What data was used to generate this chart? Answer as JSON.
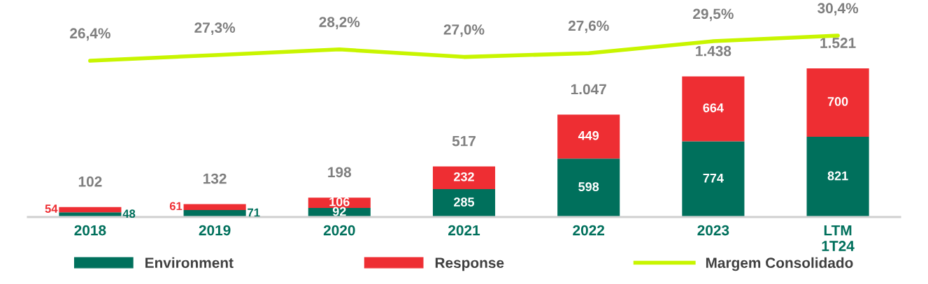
{
  "chart_data": [
    {
      "type": "bar",
      "stacked": true,
      "categories": [
        "2018",
        "2019",
        "2020",
        "2021",
        "2022",
        "2023",
        "LTM\n1T24"
      ],
      "series": [
        {
          "name": "Environment",
          "color": "#00705c",
          "values": [
            48,
            71,
            92,
            285,
            598,
            774,
            821
          ]
        },
        {
          "name": "Response",
          "color": "#ee2e33",
          "values": [
            54,
            61,
            106,
            232,
            449,
            664,
            700
          ]
        }
      ],
      "totals": [
        "102",
        "132",
        "198",
        "517",
        "1.047",
        "1.438",
        "1.521"
      ],
      "data_labels": true,
      "tick_labels": "x",
      "grid": false,
      "legend": "bottom"
    },
    {
      "type": "line",
      "categories": [
        null,
        null,
        null,
        null,
        null,
        null,
        null
      ],
      "series": [
        {
          "name": "Margem Consolidado",
          "color": "#c8f500",
          "values": [
            26.4,
            27.3,
            28.2,
            27.0,
            27.6,
            29.5,
            30.4
          ],
          "value_labels": [
            "26,4%",
            "27,3%",
            "28,2%",
            "27,0%",
            "27,6%",
            "29,5%",
            "30,4%"
          ]
        }
      ],
      "tick_labels": false,
      "grid": false,
      "legend": "bottom"
    }
  ]
}
